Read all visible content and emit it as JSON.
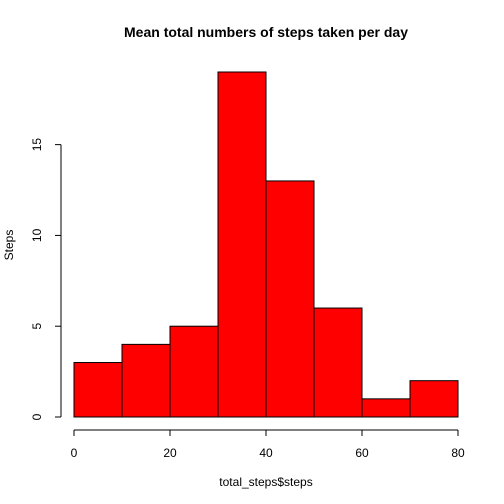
{
  "chart_data": {
    "type": "bar",
    "title": "Mean total numbers of steps taken per day",
    "xlabel": "total_steps$steps",
    "ylabel": "Steps",
    "bins": [
      [
        0,
        10
      ],
      [
        10,
        20
      ],
      [
        20,
        30
      ],
      [
        30,
        40
      ],
      [
        40,
        50
      ],
      [
        50,
        60
      ],
      [
        60,
        70
      ],
      [
        70,
        80
      ]
    ],
    "values": [
      3,
      4,
      5,
      19,
      13,
      6,
      1,
      2
    ],
    "xlim": [
      0,
      80
    ],
    "ylim": [
      0,
      19
    ],
    "xticks": [
      0,
      20,
      40,
      60,
      80
    ],
    "xtick_labels": [
      "0",
      "20",
      "40",
      "60",
      "80"
    ],
    "yticks": [
      0,
      5,
      10,
      15
    ],
    "ytick_labels": [
      "0",
      "5",
      "10",
      "15"
    ],
    "bar_color": "#ff0000",
    "grid": false
  }
}
